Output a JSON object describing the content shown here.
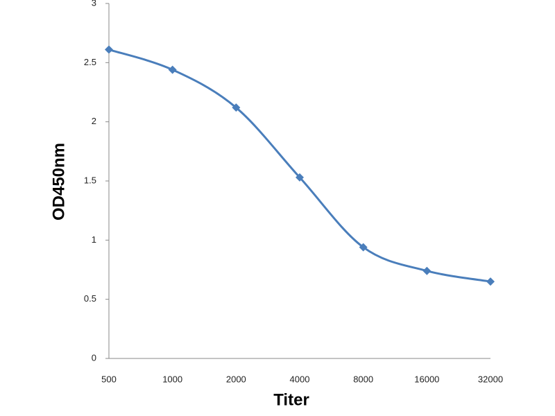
{
  "chart_data": {
    "type": "line",
    "x_label": "Titer",
    "y_label": "OD450nm",
    "categories": [
      "500",
      "1000",
      "2000",
      "4000",
      "8000",
      "16000",
      "32000"
    ],
    "values": [
      2.61,
      2.44,
      2.12,
      1.53,
      0.94,
      0.74,
      0.65
    ],
    "color": "#4a7ebb",
    "smooth": true,
    "marker": "diamond",
    "ylim": [
      0,
      3
    ],
    "yticks": [
      0,
      0.5,
      1,
      1.5,
      2,
      2.5,
      3
    ],
    "grid": false
  }
}
